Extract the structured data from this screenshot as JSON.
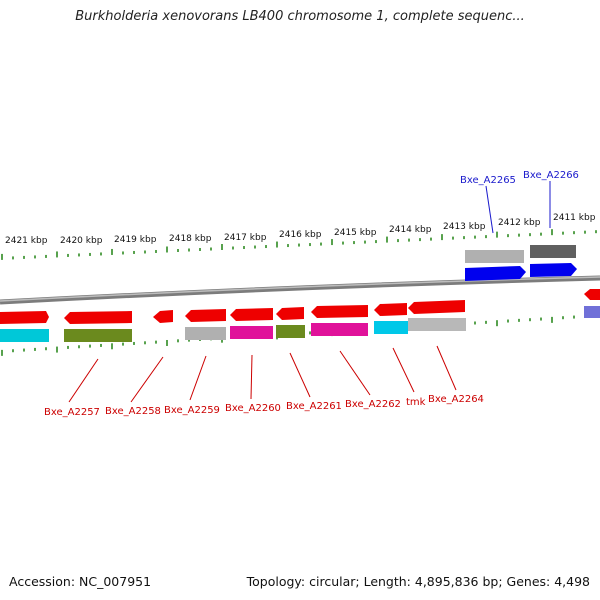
{
  "title": "Burkholderia xenovorans LB400 chromosome 1, complete sequenc...",
  "footer": {
    "accession": "Accession: NC_007951",
    "summary": "Topology: circular; Length: 4,895,836 bp; Genes: 4,498"
  },
  "colors": {
    "backbone": "#8a8a8a",
    "tick": "#2e8b22",
    "label_red": "#cc0000",
    "label_blue": "#1a1acc"
  },
  "kbp_labels": [
    "2421 kbp",
    "2420 kbp",
    "2419 kbp",
    "2418 kbp",
    "2417 kbp",
    "2416 kbp",
    "2415 kbp",
    "2414 kbp",
    "2413 kbp",
    "2412 kbp",
    "2411 kbp"
  ],
  "genes": [
    {
      "name": "Bxe_A2257",
      "color": "red"
    },
    {
      "name": "Bxe_A2258",
      "color": "red"
    },
    {
      "name": "Bxe_A2259",
      "color": "red"
    },
    {
      "name": "Bxe_A2260",
      "color": "red"
    },
    {
      "name": "Bxe_A2261",
      "color": "red"
    },
    {
      "name": "Bxe_A2262",
      "color": "red"
    },
    {
      "name": "tmk",
      "color": "red"
    },
    {
      "name": "Bxe_A2264",
      "color": "red"
    },
    {
      "name": "Bxe_A2265",
      "color": "blue"
    },
    {
      "name": "Bxe_A2266",
      "color": "blue"
    }
  ]
}
